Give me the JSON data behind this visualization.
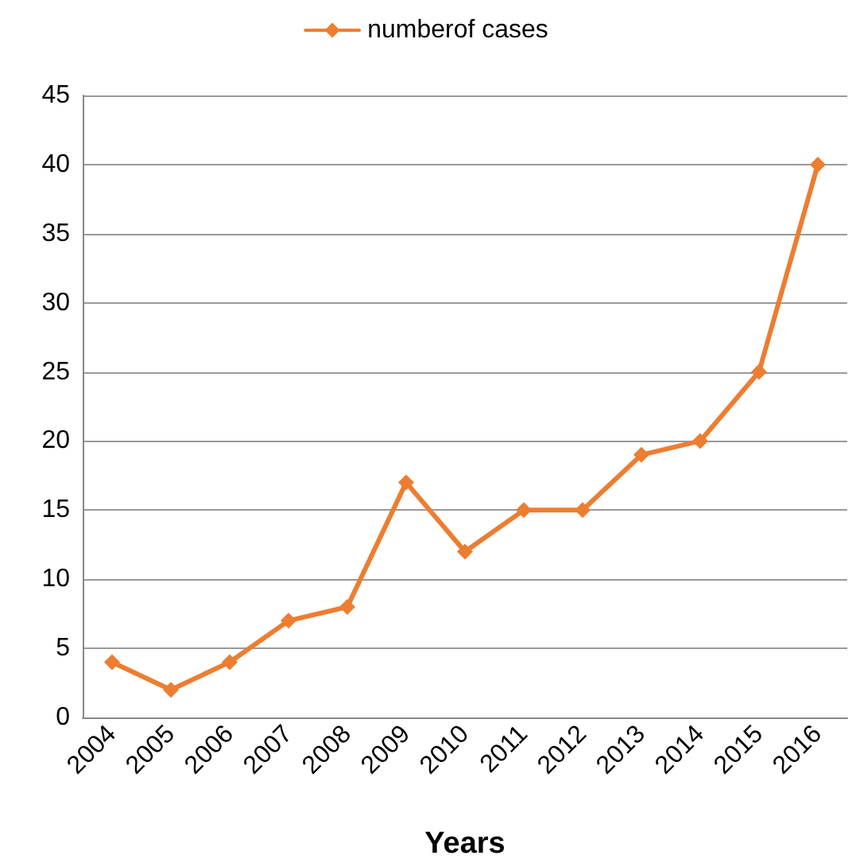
{
  "chart_data": {
    "type": "line",
    "xlabel": "Years",
    "categories": [
      "2004",
      "2005",
      "2006",
      "2007",
      "2008",
      "2009",
      "2010",
      "2011",
      "2012",
      "2013",
      "2014",
      "2015",
      "2016"
    ],
    "series": [
      {
        "name": "numberof cases",
        "color": "#ed7d31",
        "values": [
          4,
          2,
          4,
          7,
          8,
          17,
          12,
          15,
          15,
          19,
          20,
          25,
          40
        ]
      }
    ],
    "ylim": [
      0,
      45
    ],
    "yticks": [
      0,
      5,
      10,
      15,
      20,
      25,
      30,
      35,
      40,
      45
    ],
    "grid": "y",
    "legend": "top",
    "marker": "diamond",
    "line_style": "solid"
  }
}
